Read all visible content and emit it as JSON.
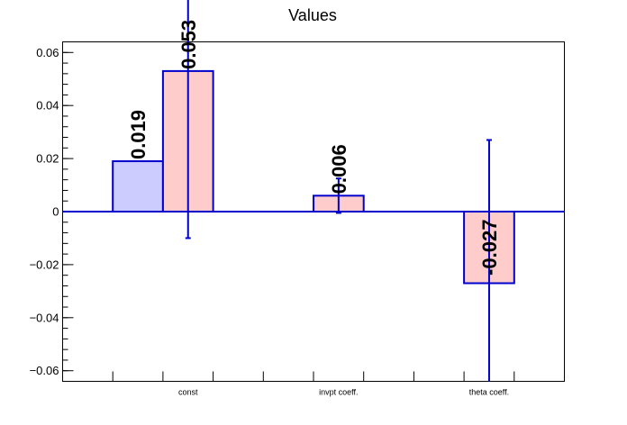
{
  "chart_data": {
    "type": "bar",
    "title": "Values",
    "categories": [
      "const",
      "invpt coeff.",
      "theta coeff."
    ],
    "ylim": [
      -0.064,
      0.064
    ],
    "yticks": [
      -0.06,
      -0.04,
      -0.02,
      0,
      0.02,
      0.04,
      0.06
    ],
    "ytick_labels": [
      "−0.06",
      "−0.04",
      "−0.02",
      "0",
      "0.02",
      "0.04",
      "0.06"
    ],
    "grid": false,
    "legend": "none",
    "series": [
      {
        "color": "#ccccff",
        "values": [
          0.019,
          null,
          null
        ],
        "errors": [
          null,
          null,
          null
        ],
        "labels": [
          "0.019",
          "",
          ""
        ]
      },
      {
        "color": "#ffcccc",
        "values": [
          0.053,
          0.006,
          -0.027
        ],
        "errors": [
          0.063,
          0.0065,
          0.054
        ],
        "labels": [
          "0.053",
          "0.006",
          "-0.027"
        ]
      }
    ],
    "colors": {
      "outline": "#0000cc",
      "axis": "#000000",
      "zero_line": "#0000cc"
    }
  }
}
